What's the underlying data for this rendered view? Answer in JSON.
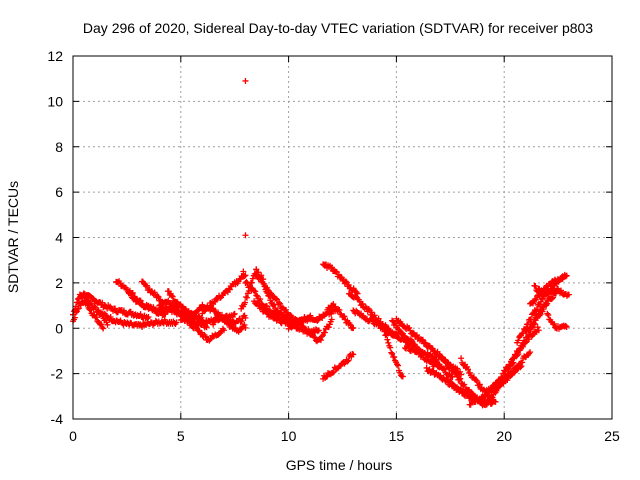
{
  "chart_data": {
    "type": "scatter",
    "title": "Day 296 of 2020, Sidereal Day-to-day VTEC variation (SDTVAR) for receiver p803",
    "xlabel": "GPS time / hours",
    "ylabel": "SDTVAR / TECUs",
    "xlim": [
      0,
      25
    ],
    "ylim": [
      -4,
      12
    ],
    "x_ticks": [
      0,
      5,
      10,
      15,
      20,
      25
    ],
    "y_ticks": [
      -4,
      -2,
      0,
      2,
      4,
      6,
      8,
      10,
      12
    ],
    "x_tick_labels": [
      "0",
      "5",
      "10",
      "15",
      "20",
      "25"
    ],
    "y_tick_labels": [
      "-4",
      "-2",
      "0",
      "2",
      "4",
      "6",
      "8",
      "10",
      "12"
    ],
    "grid": true,
    "marker": "+",
    "color": "#ff0000",
    "series": [
      {
        "name": "SDTVAR",
        "tracks": [
          {
            "start": 0.0,
            "end": 1.6,
            "y": [
              0.6,
              1.4,
              1.5,
              1.1,
              0.8,
              0.6,
              0.2
            ]
          },
          {
            "start": 0.0,
            "end": 1.4,
            "y": [
              0.3,
              0.9,
              1.2,
              1.0,
              0.6,
              0.3,
              0.0
            ]
          },
          {
            "start": 0.4,
            "end": 3.5,
            "y": [
              1.5,
              1.3,
              1.0,
              0.8,
              0.7,
              0.6,
              0.5
            ]
          },
          {
            "start": 1.2,
            "end": 4.8,
            "y": [
              0.7,
              0.4,
              0.2,
              0.1,
              0.2,
              0.3,
              0.2
            ]
          },
          {
            "start": 2.0,
            "end": 4.6,
            "y": [
              2.1,
              1.8,
              1.4,
              1.0,
              0.8,
              0.6,
              0.9
            ]
          },
          {
            "start": 2.6,
            "end": 5.4,
            "y": [
              1.5,
              1.1,
              0.9,
              0.8,
              0.9,
              0.7,
              0.5
            ]
          },
          {
            "start": 3.2,
            "end": 6.0,
            "y": [
              2.0,
              1.6,
              1.2,
              1.1,
              0.9,
              0.6,
              0.4
            ]
          },
          {
            "start": 4.0,
            "end": 7.5,
            "y": [
              1.0,
              0.8,
              0.5,
              0.2,
              0.3,
              0.5,
              0.6
            ]
          },
          {
            "start": 4.4,
            "end": 6.2,
            "y": [
              1.6,
              1.2,
              0.8,
              0.6,
              0.3,
              0.0
            ]
          },
          {
            "start": 5.0,
            "end": 8.0,
            "y": [
              0.3,
              0.6,
              1.0,
              0.8,
              0.4,
              0.2,
              0.5
            ]
          },
          {
            "start": 5.2,
            "end": 7.0,
            "y": [
              0.4,
              0.1,
              -0.2,
              -0.5,
              -0.3,
              0.0
            ]
          },
          {
            "start": 6.0,
            "end": 8.0,
            "y": [
              0.7,
              1.0,
              1.3,
              1.5,
              1.8,
              2.1,
              2.4
            ]
          },
          {
            "start": 6.5,
            "end": 8.0,
            "y": [
              0.2,
              0.5,
              0.3,
              0.0,
              -0.1,
              0.1
            ]
          },
          {
            "start": 7.8,
            "end": 9.6,
            "y": [
              0.8,
              1.5,
              2.4,
              2.2,
              1.6,
              1.0,
              0.6
            ]
          },
          {
            "start": 8.0,
            "end": 10.5,
            "y": [
              2.0,
              1.6,
              1.0,
              0.7,
              0.6,
              0.5,
              0.2
            ]
          },
          {
            "start": 8.4,
            "end": 11.0,
            "y": [
              1.2,
              0.8,
              0.5,
              0.3,
              0.2,
              0.3,
              0.4
            ]
          },
          {
            "start": 8.5,
            "end": 10.2,
            "y": [
              2.5,
              2.2,
              1.6,
              1.3,
              1.0,
              0.7,
              0.4
            ]
          },
          {
            "start": 9.0,
            "end": 11.4,
            "y": [
              0.6,
              0.5,
              0.3,
              0.0,
              -0.2,
              -0.1
            ]
          },
          {
            "start": 10.0,
            "end": 12.2,
            "y": [
              0.0,
              0.3,
              0.5,
              0.4,
              0.6,
              0.8
            ]
          },
          {
            "start": 10.5,
            "end": 12.0,
            "y": [
              0.2,
              0.0,
              -0.3,
              -0.6,
              -0.1,
              0.3
            ]
          },
          {
            "start": 11.6,
            "end": 13.2,
            "y": [
              2.8,
              2.7,
              2.4,
              2.1,
              1.8,
              1.5
            ]
          },
          {
            "start": 11.8,
            "end": 13.0,
            "y": [
              0.8,
              1.0,
              0.7,
              0.3,
              0.0
            ]
          },
          {
            "start": 11.6,
            "end": 13.0,
            "y": [
              -2.2,
              -2.0,
              -1.8,
              -1.6,
              -1.4,
              -1.1
            ]
          },
          {
            "start": 12.8,
            "end": 15.0,
            "y": [
              1.6,
              1.2,
              0.8,
              0.4,
              0.0,
              -0.3
            ]
          },
          {
            "start": 13.0,
            "end": 15.8,
            "y": [
              0.8,
              0.5,
              0.3,
              0.0,
              -0.3,
              -0.5,
              -0.8
            ]
          },
          {
            "start": 14.4,
            "end": 15.3,
            "y": [
              0.0,
              -0.5,
              -1.0,
              -1.4,
              -1.8,
              -2.2
            ]
          },
          {
            "start": 14.8,
            "end": 17.0,
            "y": [
              0.3,
              -0.2,
              -0.6,
              -1.0,
              -1.2,
              -1.6
            ]
          },
          {
            "start": 15.0,
            "end": 18.0,
            "y": [
              0.4,
              0.0,
              -0.4,
              -0.8,
              -1.2,
              -1.6,
              -2.0
            ]
          },
          {
            "start": 15.4,
            "end": 17.6,
            "y": [
              -0.8,
              -1.0,
              -1.3,
              -1.6,
              -1.8,
              -2.2
            ]
          },
          {
            "start": 16.4,
            "end": 18.6,
            "y": [
              -1.8,
              -2.0,
              -2.3,
              -2.6,
              -2.9,
              -3.1
            ]
          },
          {
            "start": 17.0,
            "end": 19.2,
            "y": [
              -1.2,
              -1.6,
              -2.0,
              -2.5,
              -2.9,
              -3.2,
              -3.4
            ]
          },
          {
            "start": 17.4,
            "end": 19.6,
            "y": [
              -2.4,
              -2.6,
              -2.9,
              -3.1,
              -3.3,
              -3.2
            ]
          },
          {
            "start": 18.0,
            "end": 20.2,
            "y": [
              -1.4,
              -1.9,
              -2.4,
              -2.8,
              -2.6,
              -2.3,
              -2.0
            ]
          },
          {
            "start": 18.4,
            "end": 20.8,
            "y": [
              -3.3,
              -3.1,
              -2.8,
              -2.4,
              -2.0,
              -1.6
            ]
          },
          {
            "start": 19.0,
            "end": 21.2,
            "y": [
              -3.4,
              -3.0,
              -2.5,
              -2.0,
              -1.5,
              -1.0
            ]
          },
          {
            "start": 19.4,
            "end": 21.6,
            "y": [
              -2.8,
              -2.2,
              -1.5,
              -0.9,
              -0.4,
              0.0
            ]
          },
          {
            "start": 20.2,
            "end": 22.0,
            "y": [
              -1.8,
              -1.2,
              -0.6,
              0.0,
              0.6,
              1.2
            ]
          },
          {
            "start": 20.6,
            "end": 22.8,
            "y": [
              -0.6,
              0.0,
              0.6,
              1.2,
              1.6,
              2.0,
              2.3
            ]
          },
          {
            "start": 21.2,
            "end": 22.9,
            "y": [
              1.0,
              1.4,
              1.7,
              2.0,
              2.2,
              2.4
            ]
          },
          {
            "start": 21.4,
            "end": 23.0,
            "y": [
              1.8,
              1.6,
              1.5,
              1.7,
              1.6,
              1.4
            ]
          },
          {
            "start": 21.0,
            "end": 22.4,
            "y": [
              -0.2,
              0.3,
              0.8,
              1.2,
              1.6
            ]
          },
          {
            "start": 22.0,
            "end": 22.9,
            "y": [
              0.6,
              0.2,
              0.0,
              0.1,
              0.0
            ]
          }
        ],
        "outliers": [
          [
            8.0,
            10.9
          ],
          [
            8.0,
            4.1
          ],
          [
            7.9,
            2.5
          ],
          [
            8.5,
            2.6
          ]
        ]
      }
    ]
  }
}
